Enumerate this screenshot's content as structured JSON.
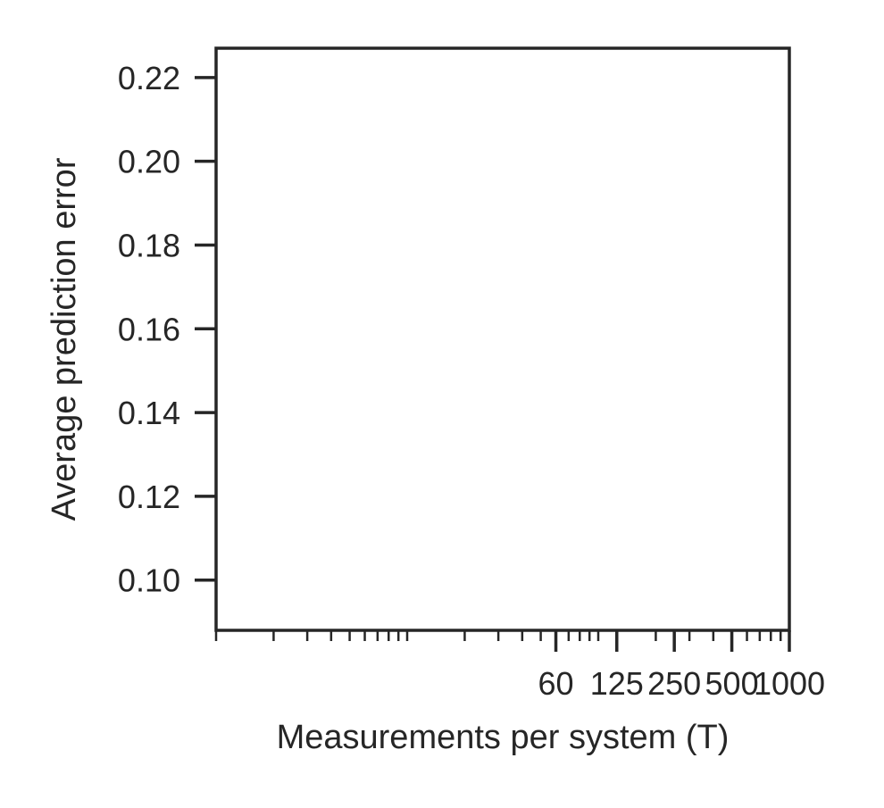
{
  "chart_data": {
    "type": "line",
    "title": "",
    "xlabel": "Measurements per system (T)",
    "ylabel": "Average prediction error",
    "xscale": "log",
    "xlim": [
      1,
      1000
    ],
    "ylim": [
      0.088,
      0.227
    ],
    "xticks": [
      {
        "value": 60,
        "label": "60"
      },
      {
        "value": 125,
        "label": "125"
      },
      {
        "value": 250,
        "label": "250"
      },
      {
        "value": 500,
        "label": "500"
      },
      {
        "value": 1000,
        "label": "1000"
      }
    ],
    "yticks": [
      {
        "value": 0.1,
        "label": "0.10"
      },
      {
        "value": 0.12,
        "label": "0.12"
      },
      {
        "value": 0.14,
        "label": "0.14"
      },
      {
        "value": 0.16,
        "label": "0.16"
      },
      {
        "value": 0.18,
        "label": "0.18"
      },
      {
        "value": 0.2,
        "label": "0.20"
      },
      {
        "value": 0.22,
        "label": "0.22"
      }
    ],
    "grid": false,
    "series": [],
    "colors": {
      "axis": "#262626",
      "background": "#ffffff"
    }
  }
}
